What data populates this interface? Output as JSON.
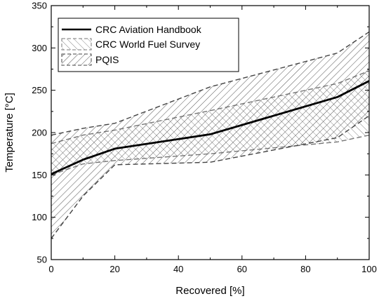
{
  "chart_data": {
    "type": "area",
    "xlabel": "Recovered [%]",
    "ylabel": "Temperature [°C]",
    "xlim": [
      0,
      100
    ],
    "ylim": [
      50,
      350
    ],
    "xticks": [
      0,
      20,
      40,
      60,
      80,
      100
    ],
    "yticks": [
      50,
      100,
      150,
      200,
      250,
      300,
      350
    ],
    "grid": false,
    "legend_position": "top-left",
    "line": {
      "name": "CRC Aviation Handbook",
      "color": "#000000",
      "x": [
        0,
        10,
        20,
        50,
        90,
        100
      ],
      "y": [
        151,
        168,
        181,
        198,
        242,
        261
      ]
    },
    "bands": [
      {
        "name": "CRC World Fuel Survey",
        "color": "#777777",
        "pattern": "hatch-forward",
        "x": [
          0,
          10,
          20,
          50,
          90,
          100
        ],
        "upper": [
          187,
          197,
          203,
          226,
          258,
          273
        ],
        "lower": [
          150,
          163,
          167,
          175,
          189,
          197
        ]
      },
      {
        "name": "PQIS",
        "color": "#444444",
        "pattern": "hatch-back",
        "x": [
          0,
          10,
          20,
          50,
          90,
          100
        ],
        "upper": [
          197,
          205,
          211,
          254,
          294,
          319
        ],
        "lower": [
          75,
          125,
          162,
          165,
          194,
          220
        ]
      }
    ]
  }
}
